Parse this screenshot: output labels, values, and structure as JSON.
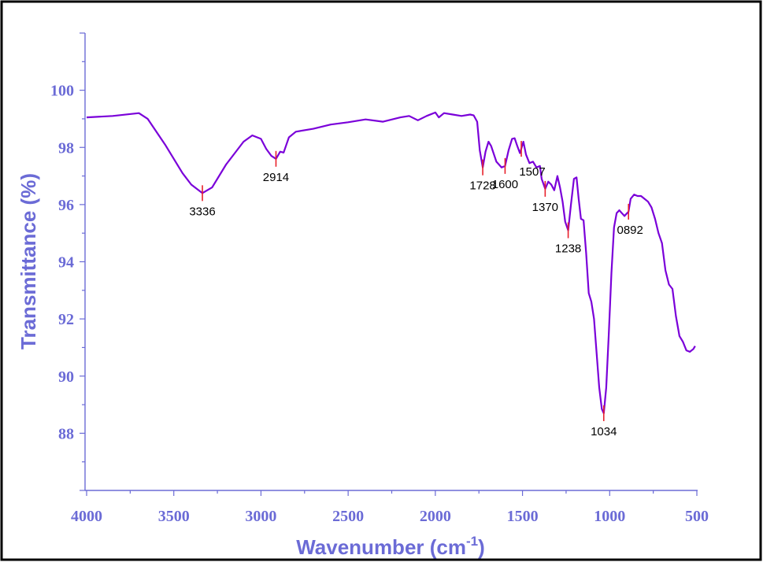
{
  "chart_data": {
    "type": "line",
    "xlabel": "Wavenumber (cm",
    "xlabel_superscript": "-1",
    "xlabel_suffix": ")",
    "ylabel": "Transmittance (%)",
    "xlim": [
      4000,
      500
    ],
    "ylim": [
      86,
      102
    ],
    "x_reversed": true,
    "grid": false,
    "legend": "none",
    "x_ticks": [
      "4000",
      "3500",
      "3000",
      "2500",
      "2000",
      "1500",
      "1000",
      "500"
    ],
    "y_ticks": [
      "88",
      "90",
      "92",
      "94",
      "96",
      "98",
      "100"
    ],
    "colors": {
      "line": "#7a00d9",
      "axis": "#6b6bd6",
      "peak_marker": "#e8202a"
    },
    "series": [
      {
        "x": [
          4000,
          3850,
          3700,
          3650,
          3550,
          3450,
          3400,
          3336,
          3280,
          3200,
          3100,
          3050,
          3000,
          2970,
          2940,
          2914,
          2890,
          2870,
          2840,
          2800,
          2700,
          2600,
          2500,
          2400,
          2300,
          2200,
          2150,
          2100,
          2050,
          2000,
          1980,
          1950,
          1900,
          1850,
          1800,
          1780,
          1760,
          1745,
          1728,
          1712,
          1695,
          1680,
          1650,
          1620,
          1600,
          1580,
          1560,
          1545,
          1530,
          1515,
          1507,
          1495,
          1480,
          1460,
          1440,
          1420,
          1400,
          1390,
          1370,
          1352,
          1335,
          1318,
          1300,
          1285,
          1270,
          1255,
          1238,
          1222,
          1205,
          1190,
          1178,
          1165,
          1150,
          1135,
          1120,
          1105,
          1090,
          1075,
          1060,
          1045,
          1034,
          1020,
          1005,
          990,
          975,
          960,
          945,
          930,
          915,
          900,
          892,
          880,
          860,
          840,
          820,
          800,
          780,
          760,
          740,
          720,
          700,
          680,
          660,
          640,
          620,
          600,
          580,
          560,
          540,
          520,
          510
        ],
        "y": [
          99.05,
          99.1,
          99.2,
          99.0,
          98.1,
          97.1,
          96.7,
          96.4,
          96.6,
          97.4,
          98.2,
          98.42,
          98.3,
          97.95,
          97.7,
          97.6,
          97.85,
          97.82,
          98.35,
          98.55,
          98.65,
          98.8,
          98.88,
          98.98,
          98.9,
          99.05,
          99.1,
          98.95,
          99.1,
          99.22,
          99.05,
          99.2,
          99.15,
          99.1,
          99.15,
          99.12,
          98.9,
          97.9,
          97.3,
          97.85,
          98.2,
          98.05,
          97.5,
          97.3,
          97.35,
          97.9,
          98.3,
          98.32,
          98.05,
          97.8,
          97.95,
          98.2,
          97.75,
          97.45,
          97.5,
          97.3,
          97.35,
          96.9,
          96.55,
          96.8,
          96.7,
          96.5,
          97.0,
          96.6,
          96.1,
          95.4,
          95.1,
          96.0,
          96.9,
          96.95,
          96.2,
          95.5,
          95.45,
          94.3,
          92.9,
          92.6,
          92.0,
          90.8,
          89.6,
          88.85,
          88.7,
          89.6,
          91.5,
          93.6,
          95.2,
          95.7,
          95.8,
          95.7,
          95.6,
          95.7,
          95.75,
          96.2,
          96.35,
          96.3,
          96.3,
          96.2,
          96.1,
          95.9,
          95.5,
          95.0,
          94.65,
          93.7,
          93.2,
          93.05,
          92.1,
          91.4,
          91.2,
          90.9,
          90.85,
          90.95,
          91.05
        ]
      }
    ],
    "peaks": [
      {
        "x": 3336,
        "label": "3336"
      },
      {
        "x": 2914,
        "label": "2914"
      },
      {
        "x": 1728,
        "label": "1728"
      },
      {
        "x": 1600,
        "label": "1600"
      },
      {
        "x": 1507,
        "label": "1507"
      },
      {
        "x": 1370,
        "label": "1370"
      },
      {
        "x": 1238,
        "label": "1238"
      },
      {
        "x": 1034,
        "label": "1034"
      },
      {
        "x": 892,
        "label": "0892"
      }
    ]
  }
}
